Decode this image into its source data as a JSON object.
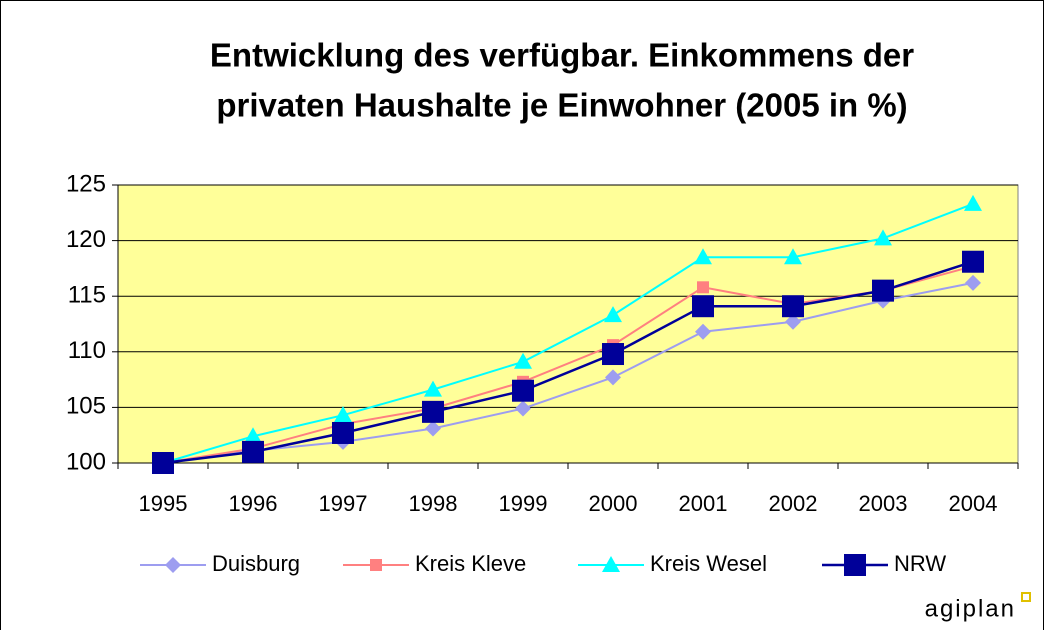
{
  "chart_data": {
    "type": "line",
    "title": [
      "Entwicklung des verfügbar. Einkommens der",
      "privaten Haushalte je Einwohner (2005 in %)"
    ],
    "categories": [
      "1995",
      "1996",
      "1997",
      "1998",
      "1999",
      "2000",
      "2001",
      "2002",
      "2003",
      "2004"
    ],
    "series": [
      {
        "name": "Duisburg",
        "color": "#9d9df0",
        "marker": "diamond",
        "values": [
          100,
          101.1,
          101.9,
          103.1,
          104.9,
          107.7,
          111.8,
          112.7,
          114.6,
          116.2
        ]
      },
      {
        "name": "Kreis Kleve",
        "color": "#ff8080",
        "marker": "square",
        "values": [
          100,
          101.3,
          103.5,
          104.9,
          107.3,
          110.6,
          115.8,
          114.3,
          115.5,
          117.7
        ]
      },
      {
        "name": "Kreis Wesel",
        "color": "#00ffff",
        "marker": "triangle",
        "values": [
          100,
          102.4,
          104.3,
          106.6,
          109.1,
          113.3,
          118.5,
          118.5,
          120.2,
          123.3
        ]
      },
      {
        "name": "NRW",
        "color": "#000099",
        "marker": "bigsquare",
        "values": [
          100,
          101,
          102.7,
          104.6,
          106.5,
          109.8,
          114.1,
          114.1,
          115.5,
          118.1
        ]
      }
    ],
    "ylim": [
      100,
      125
    ],
    "yticks": [
      100,
      105,
      110,
      115,
      120,
      125
    ],
    "grid": true,
    "plot_background": "#ffff99",
    "legend": "bottom",
    "brand": "agiplan"
  }
}
